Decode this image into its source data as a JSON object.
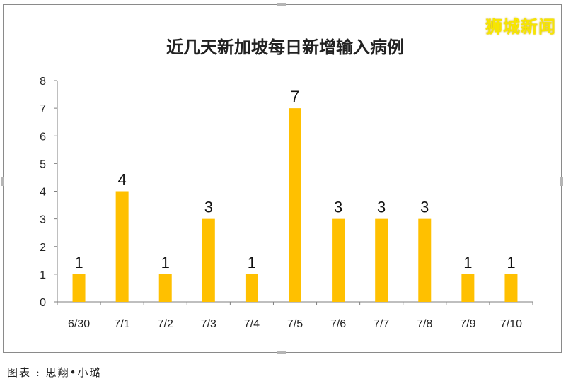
{
  "watermark": "狮城新闻",
  "caption": "图表 : 思翔•小璐",
  "chart_data": {
    "type": "bar",
    "title": "近几天新加坡每日新增输入病例",
    "categories": [
      "6/30",
      "7/1",
      "7/2",
      "7/3",
      "7/4",
      "7/5",
      "7/6",
      "7/7",
      "7/8",
      "7/9",
      "7/10"
    ],
    "values": [
      1,
      4,
      1,
      3,
      1,
      7,
      3,
      3,
      3,
      1,
      1
    ],
    "ylim": [
      0,
      8
    ],
    "yticks": [
      0,
      1,
      2,
      3,
      4,
      5,
      6,
      7,
      8
    ],
    "grid": false,
    "bar_color": "#FFC000"
  }
}
